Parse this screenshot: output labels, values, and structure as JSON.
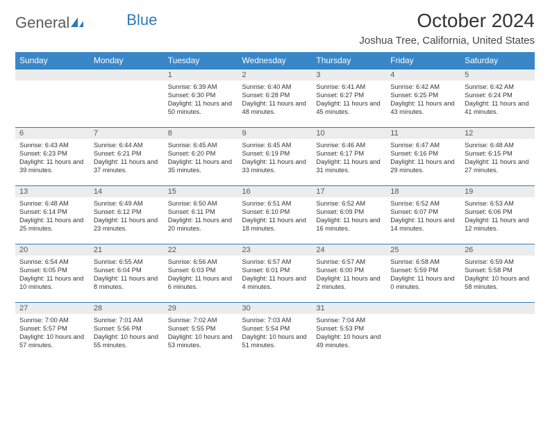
{
  "brand": {
    "part1": "General",
    "part2": "Blue"
  },
  "title": "October 2024",
  "location": "Joshua Tree, California, United States",
  "colors": {
    "header_bg": "#3a87c8",
    "header_fg": "#ffffff",
    "strip_bg": "#ececec",
    "rule": "#2a7ab9",
    "text": "#333333"
  },
  "day_labels": [
    "Sunday",
    "Monday",
    "Tuesday",
    "Wednesday",
    "Thursday",
    "Friday",
    "Saturday"
  ],
  "weeks": [
    [
      null,
      null,
      {
        "n": "1",
        "sr": "6:39 AM",
        "ss": "6:30 PM",
        "dl": "11 hours and 50 minutes."
      },
      {
        "n": "2",
        "sr": "6:40 AM",
        "ss": "6:28 PM",
        "dl": "11 hours and 48 minutes."
      },
      {
        "n": "3",
        "sr": "6:41 AM",
        "ss": "6:27 PM",
        "dl": "11 hours and 45 minutes."
      },
      {
        "n": "4",
        "sr": "6:42 AM",
        "ss": "6:25 PM",
        "dl": "11 hours and 43 minutes."
      },
      {
        "n": "5",
        "sr": "6:42 AM",
        "ss": "6:24 PM",
        "dl": "11 hours and 41 minutes."
      }
    ],
    [
      {
        "n": "6",
        "sr": "6:43 AM",
        "ss": "6:23 PM",
        "dl": "11 hours and 39 minutes."
      },
      {
        "n": "7",
        "sr": "6:44 AM",
        "ss": "6:21 PM",
        "dl": "11 hours and 37 minutes."
      },
      {
        "n": "8",
        "sr": "6:45 AM",
        "ss": "6:20 PM",
        "dl": "11 hours and 35 minutes."
      },
      {
        "n": "9",
        "sr": "6:45 AM",
        "ss": "6:19 PM",
        "dl": "11 hours and 33 minutes."
      },
      {
        "n": "10",
        "sr": "6:46 AM",
        "ss": "6:17 PM",
        "dl": "11 hours and 31 minutes."
      },
      {
        "n": "11",
        "sr": "6:47 AM",
        "ss": "6:16 PM",
        "dl": "11 hours and 29 minutes."
      },
      {
        "n": "12",
        "sr": "6:48 AM",
        "ss": "6:15 PM",
        "dl": "11 hours and 27 minutes."
      }
    ],
    [
      {
        "n": "13",
        "sr": "6:48 AM",
        "ss": "6:14 PM",
        "dl": "11 hours and 25 minutes."
      },
      {
        "n": "14",
        "sr": "6:49 AM",
        "ss": "6:12 PM",
        "dl": "11 hours and 23 minutes."
      },
      {
        "n": "15",
        "sr": "6:50 AM",
        "ss": "6:11 PM",
        "dl": "11 hours and 20 minutes."
      },
      {
        "n": "16",
        "sr": "6:51 AM",
        "ss": "6:10 PM",
        "dl": "11 hours and 18 minutes."
      },
      {
        "n": "17",
        "sr": "6:52 AM",
        "ss": "6:09 PM",
        "dl": "11 hours and 16 minutes."
      },
      {
        "n": "18",
        "sr": "6:52 AM",
        "ss": "6:07 PM",
        "dl": "11 hours and 14 minutes."
      },
      {
        "n": "19",
        "sr": "6:53 AM",
        "ss": "6:06 PM",
        "dl": "11 hours and 12 minutes."
      }
    ],
    [
      {
        "n": "20",
        "sr": "6:54 AM",
        "ss": "6:05 PM",
        "dl": "11 hours and 10 minutes."
      },
      {
        "n": "21",
        "sr": "6:55 AM",
        "ss": "6:04 PM",
        "dl": "11 hours and 8 minutes."
      },
      {
        "n": "22",
        "sr": "6:56 AM",
        "ss": "6:03 PM",
        "dl": "11 hours and 6 minutes."
      },
      {
        "n": "23",
        "sr": "6:57 AM",
        "ss": "6:01 PM",
        "dl": "11 hours and 4 minutes."
      },
      {
        "n": "24",
        "sr": "6:57 AM",
        "ss": "6:00 PM",
        "dl": "11 hours and 2 minutes."
      },
      {
        "n": "25",
        "sr": "6:58 AM",
        "ss": "5:59 PM",
        "dl": "11 hours and 0 minutes."
      },
      {
        "n": "26",
        "sr": "6:59 AM",
        "ss": "5:58 PM",
        "dl": "10 hours and 58 minutes."
      }
    ],
    [
      {
        "n": "27",
        "sr": "7:00 AM",
        "ss": "5:57 PM",
        "dl": "10 hours and 57 minutes."
      },
      {
        "n": "28",
        "sr": "7:01 AM",
        "ss": "5:56 PM",
        "dl": "10 hours and 55 minutes."
      },
      {
        "n": "29",
        "sr": "7:02 AM",
        "ss": "5:55 PM",
        "dl": "10 hours and 53 minutes."
      },
      {
        "n": "30",
        "sr": "7:03 AM",
        "ss": "5:54 PM",
        "dl": "10 hours and 51 minutes."
      },
      {
        "n": "31",
        "sr": "7:04 AM",
        "ss": "5:53 PM",
        "dl": "10 hours and 49 minutes."
      },
      null,
      null
    ]
  ],
  "labels": {
    "sunrise": "Sunrise: ",
    "sunset": "Sunset: ",
    "daylight": "Daylight: "
  }
}
